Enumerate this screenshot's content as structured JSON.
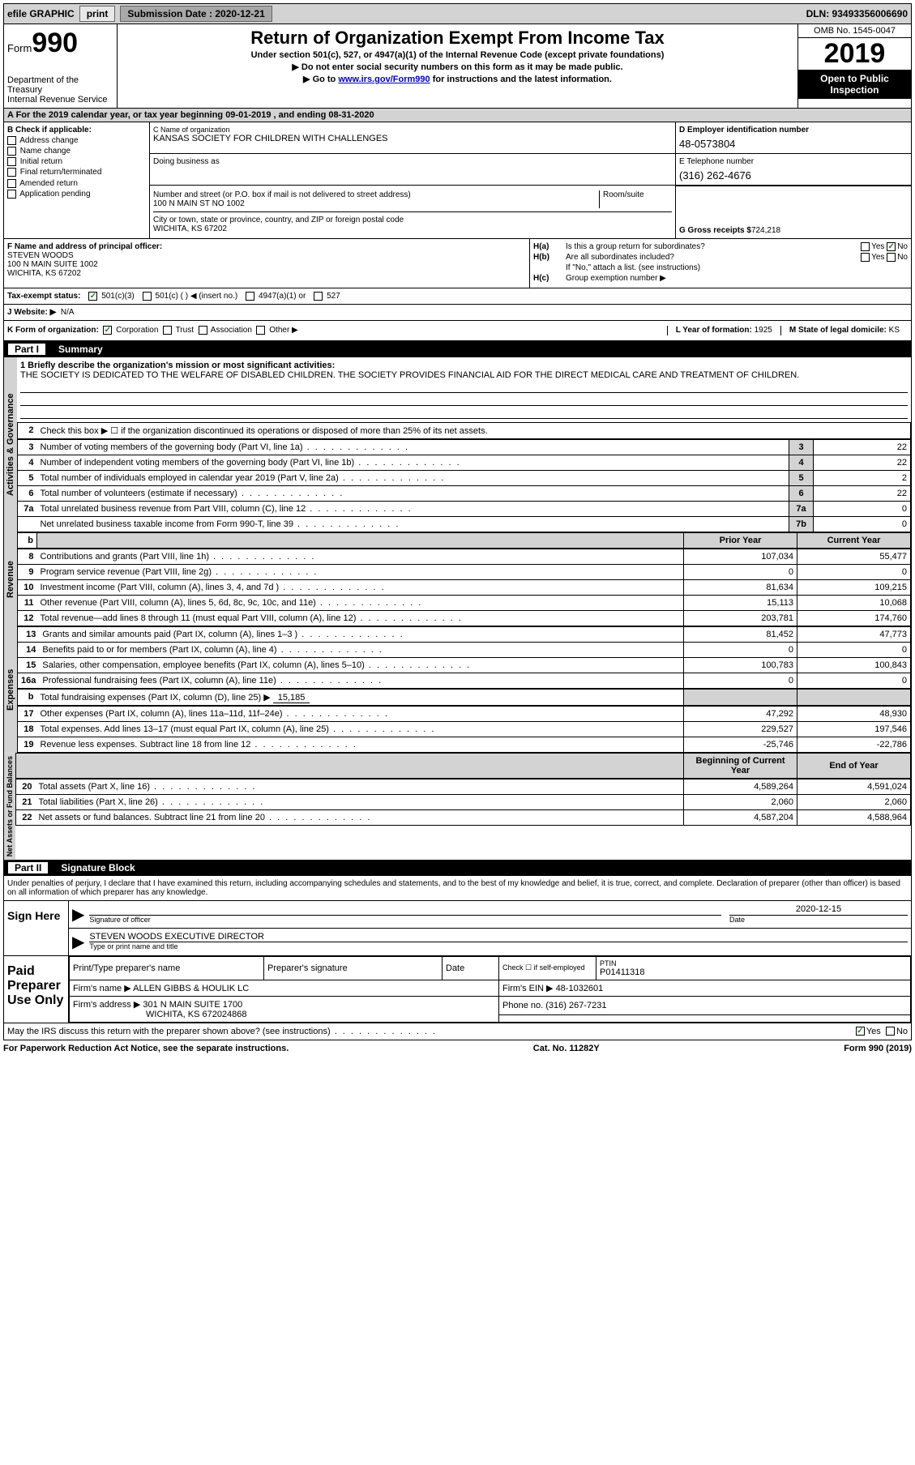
{
  "top": {
    "efile": "efile GRAPHIC",
    "print": "print",
    "submission_label": "Submission Date : 2020-12-21",
    "dln": "DLN: 93493356006690"
  },
  "header": {
    "form_word": "Form",
    "form_num": "990",
    "dept": "Department of the Treasury",
    "irs": "Internal Revenue Service",
    "title": "Return of Organization Exempt From Income Tax",
    "subtitle": "Under section 501(c), 527, or 4947(a)(1) of the Internal Revenue Code (except private foundations)",
    "note1": "▶ Do not enter social security numbers on this form as it may be made public.",
    "note2_pre": "▶ Go to ",
    "note2_link": "www.irs.gov/Form990",
    "note2_post": " for instructions and the latest information.",
    "omb": "OMB No. 1545-0047",
    "year": "2019",
    "open": "Open to Public Inspection"
  },
  "row_a": "A For the 2019 calendar year, or tax year beginning 09-01-2019   , and ending 08-31-2020",
  "col_b": {
    "title": "B Check if applicable:",
    "items": [
      "Address change",
      "Name change",
      "Initial return",
      "Final return/terminated",
      "Amended return",
      "Application pending"
    ]
  },
  "c": {
    "name_label": "C Name of organization",
    "name": "KANSAS SOCIETY FOR CHILDREN WITH CHALLENGES",
    "dba_label": "Doing business as",
    "street_label": "Number and street (or P.O. box if mail is not delivered to street address)",
    "room_label": "Room/suite",
    "street": "100 N MAIN ST NO 1002",
    "city_label": "City or town, state or province, country, and ZIP or foreign postal code",
    "city": "WICHITA, KS  67202"
  },
  "d": {
    "label": "D Employer identification number",
    "value": "48-0573804"
  },
  "e": {
    "label": "E Telephone number",
    "value": "(316) 262-4676"
  },
  "g": {
    "label": "G Gross receipts $ ",
    "value": "724,218"
  },
  "f": {
    "label": "F Name and address of principal officer:",
    "name": "STEVEN WOODS",
    "addr1": "100 N MAIN SUITE 1002",
    "addr2": "WICHITA, KS  67202"
  },
  "h": {
    "a": "Is this a group return for subordinates?",
    "b": "Are all subordinates included?",
    "b_note": "If \"No,\" attach a list. (see instructions)",
    "c_label": "Group exemption number ▶",
    "yes": "Yes",
    "no": "No"
  },
  "i": {
    "label": "Tax-exempt status:",
    "o1": "501(c)(3)",
    "o2": "501(c) (  ) ◀ (insert no.)",
    "o3": "4947(a)(1) or",
    "o4": "527"
  },
  "j": {
    "label": "J   Website: ▶",
    "value": "N/A"
  },
  "k": {
    "label": "K Form of organization:",
    "o1": "Corporation",
    "o2": "Trust",
    "o3": "Association",
    "o4": "Other ▶",
    "l_label": "L Year of formation: ",
    "l_value": "1925",
    "m_label": "M State of legal domicile: ",
    "m_value": "KS"
  },
  "part1": {
    "num": "Part I",
    "title": "Summary"
  },
  "mission": {
    "q1": "1  Briefly describe the organization's mission or most significant activities:",
    "text": "THE SOCIETY IS DEDICATED TO THE WELFARE OF DISABLED CHILDREN. THE SOCIETY PROVIDES FINANCIAL AID FOR THE DIRECT MEDICAL CARE AND TREATMENT OF CHILDREN."
  },
  "line2": "Check this box ▶ ☐  if the organization discontinued its operations or disposed of more than 25% of its net assets.",
  "gov_lines": [
    {
      "n": "3",
      "d": "Number of voting members of the governing body (Part VI, line 1a)",
      "box": "3",
      "v": "22"
    },
    {
      "n": "4",
      "d": "Number of independent voting members of the governing body (Part VI, line 1b)",
      "box": "4",
      "v": "22"
    },
    {
      "n": "5",
      "d": "Total number of individuals employed in calendar year 2019 (Part V, line 2a)",
      "box": "5",
      "v": "2"
    },
    {
      "n": "6",
      "d": "Total number of volunteers (estimate if necessary)",
      "box": "6",
      "v": "22"
    },
    {
      "n": "7a",
      "d": "Total unrelated business revenue from Part VIII, column (C), line 12",
      "box": "7a",
      "v": "0"
    },
    {
      "n": "",
      "d": "Net unrelated business taxable income from Form 990-T, line 39",
      "box": "7b",
      "v": "0"
    }
  ],
  "col_headers": {
    "prior": "Prior Year",
    "current": "Current Year"
  },
  "revenue": [
    {
      "n": "8",
      "d": "Contributions and grants (Part VIII, line 1h)",
      "p": "107,034",
      "c": "55,477"
    },
    {
      "n": "9",
      "d": "Program service revenue (Part VIII, line 2g)",
      "p": "0",
      "c": "0"
    },
    {
      "n": "10",
      "d": "Investment income (Part VIII, column (A), lines 3, 4, and 7d )",
      "p": "81,634",
      "c": "109,215"
    },
    {
      "n": "11",
      "d": "Other revenue (Part VIII, column (A), lines 5, 6d, 8c, 9c, 10c, and 11e)",
      "p": "15,113",
      "c": "10,068"
    },
    {
      "n": "12",
      "d": "Total revenue—add lines 8 through 11 (must equal Part VIII, column (A), line 12)",
      "p": "203,781",
      "c": "174,760"
    }
  ],
  "expenses": [
    {
      "n": "13",
      "d": "Grants and similar amounts paid (Part IX, column (A), lines 1–3 )",
      "p": "81,452",
      "c": "47,773"
    },
    {
      "n": "14",
      "d": "Benefits paid to or for members (Part IX, column (A), line 4)",
      "p": "0",
      "c": "0"
    },
    {
      "n": "15",
      "d": "Salaries, other compensation, employee benefits (Part IX, column (A), lines 5–10)",
      "p": "100,783",
      "c": "100,843"
    },
    {
      "n": "16a",
      "d": "Professional fundraising fees (Part IX, column (A), line 11e)",
      "p": "0",
      "c": "0"
    }
  ],
  "line16b_pre": "Total fundraising expenses (Part IX, column (D), line 25) ▶",
  "line16b_val": "15,185",
  "expenses2": [
    {
      "n": "17",
      "d": "Other expenses (Part IX, column (A), lines 11a–11d, 11f–24e)",
      "p": "47,292",
      "c": "48,930"
    },
    {
      "n": "18",
      "d": "Total expenses. Add lines 13–17 (must equal Part IX, column (A), line 25)",
      "p": "229,527",
      "c": "197,546"
    },
    {
      "n": "19",
      "d": "Revenue less expenses. Subtract line 18 from line 12",
      "p": "-25,746",
      "c": "-22,786"
    }
  ],
  "net_headers": {
    "begin": "Beginning of Current Year",
    "end": "End of Year"
  },
  "net": [
    {
      "n": "20",
      "d": "Total assets (Part X, line 16)",
      "p": "4,589,264",
      "c": "4,591,024"
    },
    {
      "n": "21",
      "d": "Total liabilities (Part X, line 26)",
      "p": "2,060",
      "c": "2,060"
    },
    {
      "n": "22",
      "d": "Net assets or fund balances. Subtract line 21 from line 20",
      "p": "4,587,204",
      "c": "4,588,964"
    }
  ],
  "vert": {
    "gov": "Activities & Governance",
    "rev": "Revenue",
    "exp": "Expenses",
    "net": "Net Assets or Fund Balances"
  },
  "part2": {
    "num": "Part II",
    "title": "Signature Block"
  },
  "penalties": "Under penalties of perjury, I declare that I have examined this return, including accompanying schedules and statements, and to the best of my knowledge and belief, it is true, correct, and complete. Declaration of preparer (other than officer) is based on all information of which preparer has any knowledge.",
  "sign": {
    "here": "Sign Here",
    "sig_officer": "Signature of officer",
    "date_label": "Date",
    "date": "2020-12-15",
    "name_title": "STEVEN WOODS  EXECUTIVE DIRECTOR",
    "type_print": "Type or print name and title"
  },
  "paid": {
    "label": "Paid Preparer Use Only",
    "h1": "Print/Type preparer's name",
    "h2": "Preparer's signature",
    "h3": "Date",
    "h4_check": "Check ☐ if self-employed",
    "h5": "PTIN",
    "ptin": "P01411318",
    "firm_name_label": "Firm's name    ▶",
    "firm_name": "ALLEN GIBBS & HOULIK LC",
    "firm_ein_label": "Firm's EIN ▶",
    "firm_ein": "48-1032601",
    "firm_addr_label": "Firm's address ▶",
    "firm_addr1": "301 N MAIN SUITE 1700",
    "firm_addr2": "WICHITA, KS  672024868",
    "phone_label": "Phone no.",
    "phone": "(316) 267-7231"
  },
  "discuss": "May the IRS discuss this return with the preparer shown above? (see instructions)",
  "footer": {
    "left": "For Paperwork Reduction Act Notice, see the separate instructions.",
    "mid": "Cat. No. 11282Y",
    "right_pre": "Form ",
    "right_num": "990",
    "right_post": " (2019)"
  }
}
